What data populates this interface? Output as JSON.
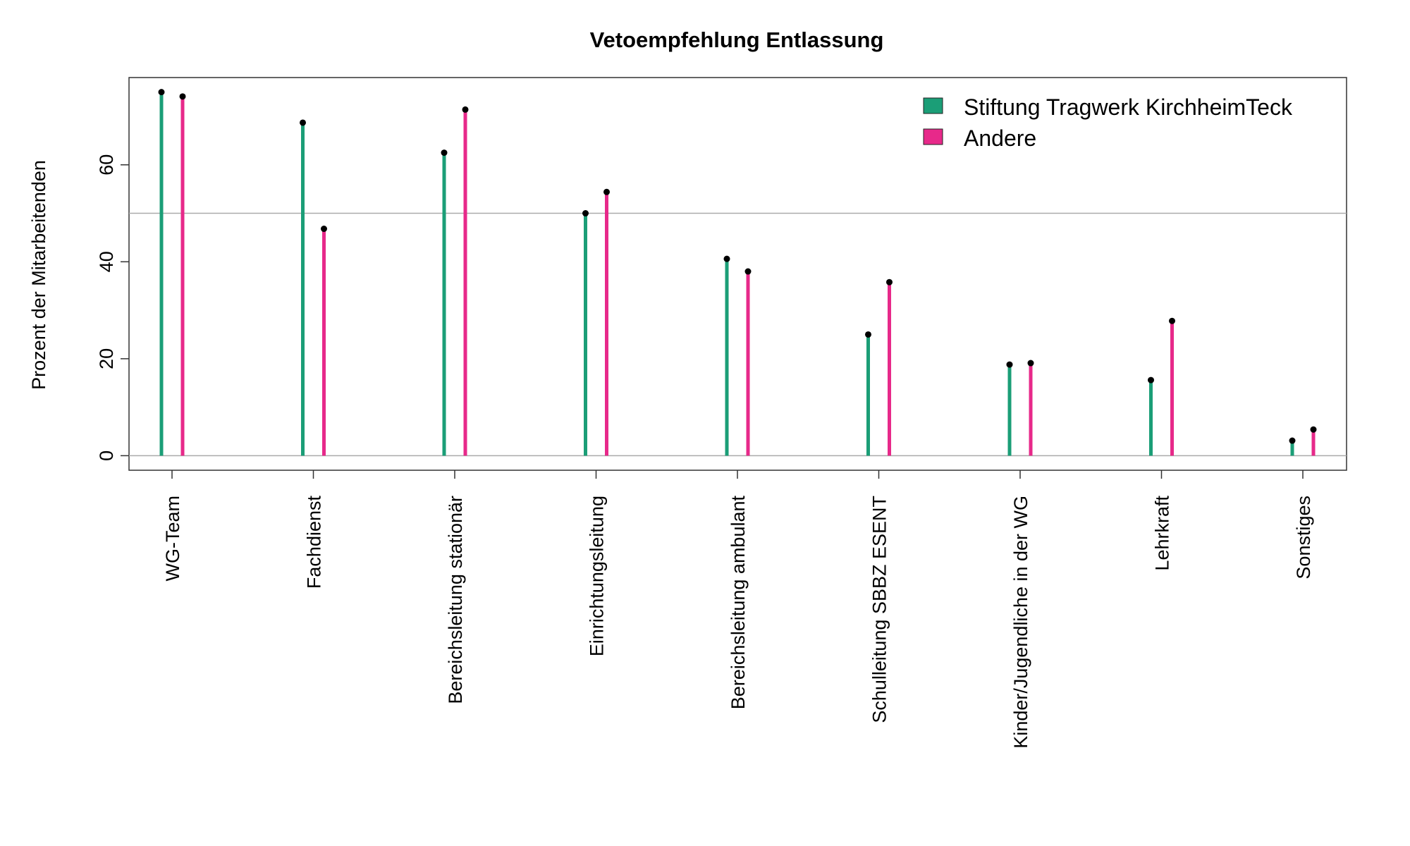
{
  "chart_data": {
    "type": "bar",
    "title": "Vetoempfehlung Entlassung",
    "xlabel": "",
    "ylabel": "Prozent der Mitarbeitenden",
    "categories": [
      "WG-Team",
      "Fachdienst",
      "Bereichsleitung stationär",
      "Einrichtungsleitung",
      "Bereichsleitung ambulant",
      "Schulleitung SBBZ ESENT",
      "Kinder/Jugendliche in der WG",
      "Lehrkraft",
      "Sonstiges"
    ],
    "series": [
      {
        "name": "Stiftung Tragwerk KirchheimTeck",
        "color": "#1b9e77",
        "values": [
          75.0,
          68.7,
          62.5,
          50.0,
          40.6,
          25.0,
          18.8,
          15.6,
          3.1
        ]
      },
      {
        "name": "Andere",
        "color": "#e7298a",
        "values": [
          74.1,
          46.8,
          71.4,
          54.4,
          38.0,
          35.8,
          19.1,
          27.8,
          5.4
        ]
      }
    ],
    "reference_line": 50,
    "ylim": [
      -3,
      78
    ],
    "yticks": [
      0,
      20,
      40,
      60
    ],
    "legend_position": "top-right",
    "grid": false,
    "style": "lollipop"
  }
}
